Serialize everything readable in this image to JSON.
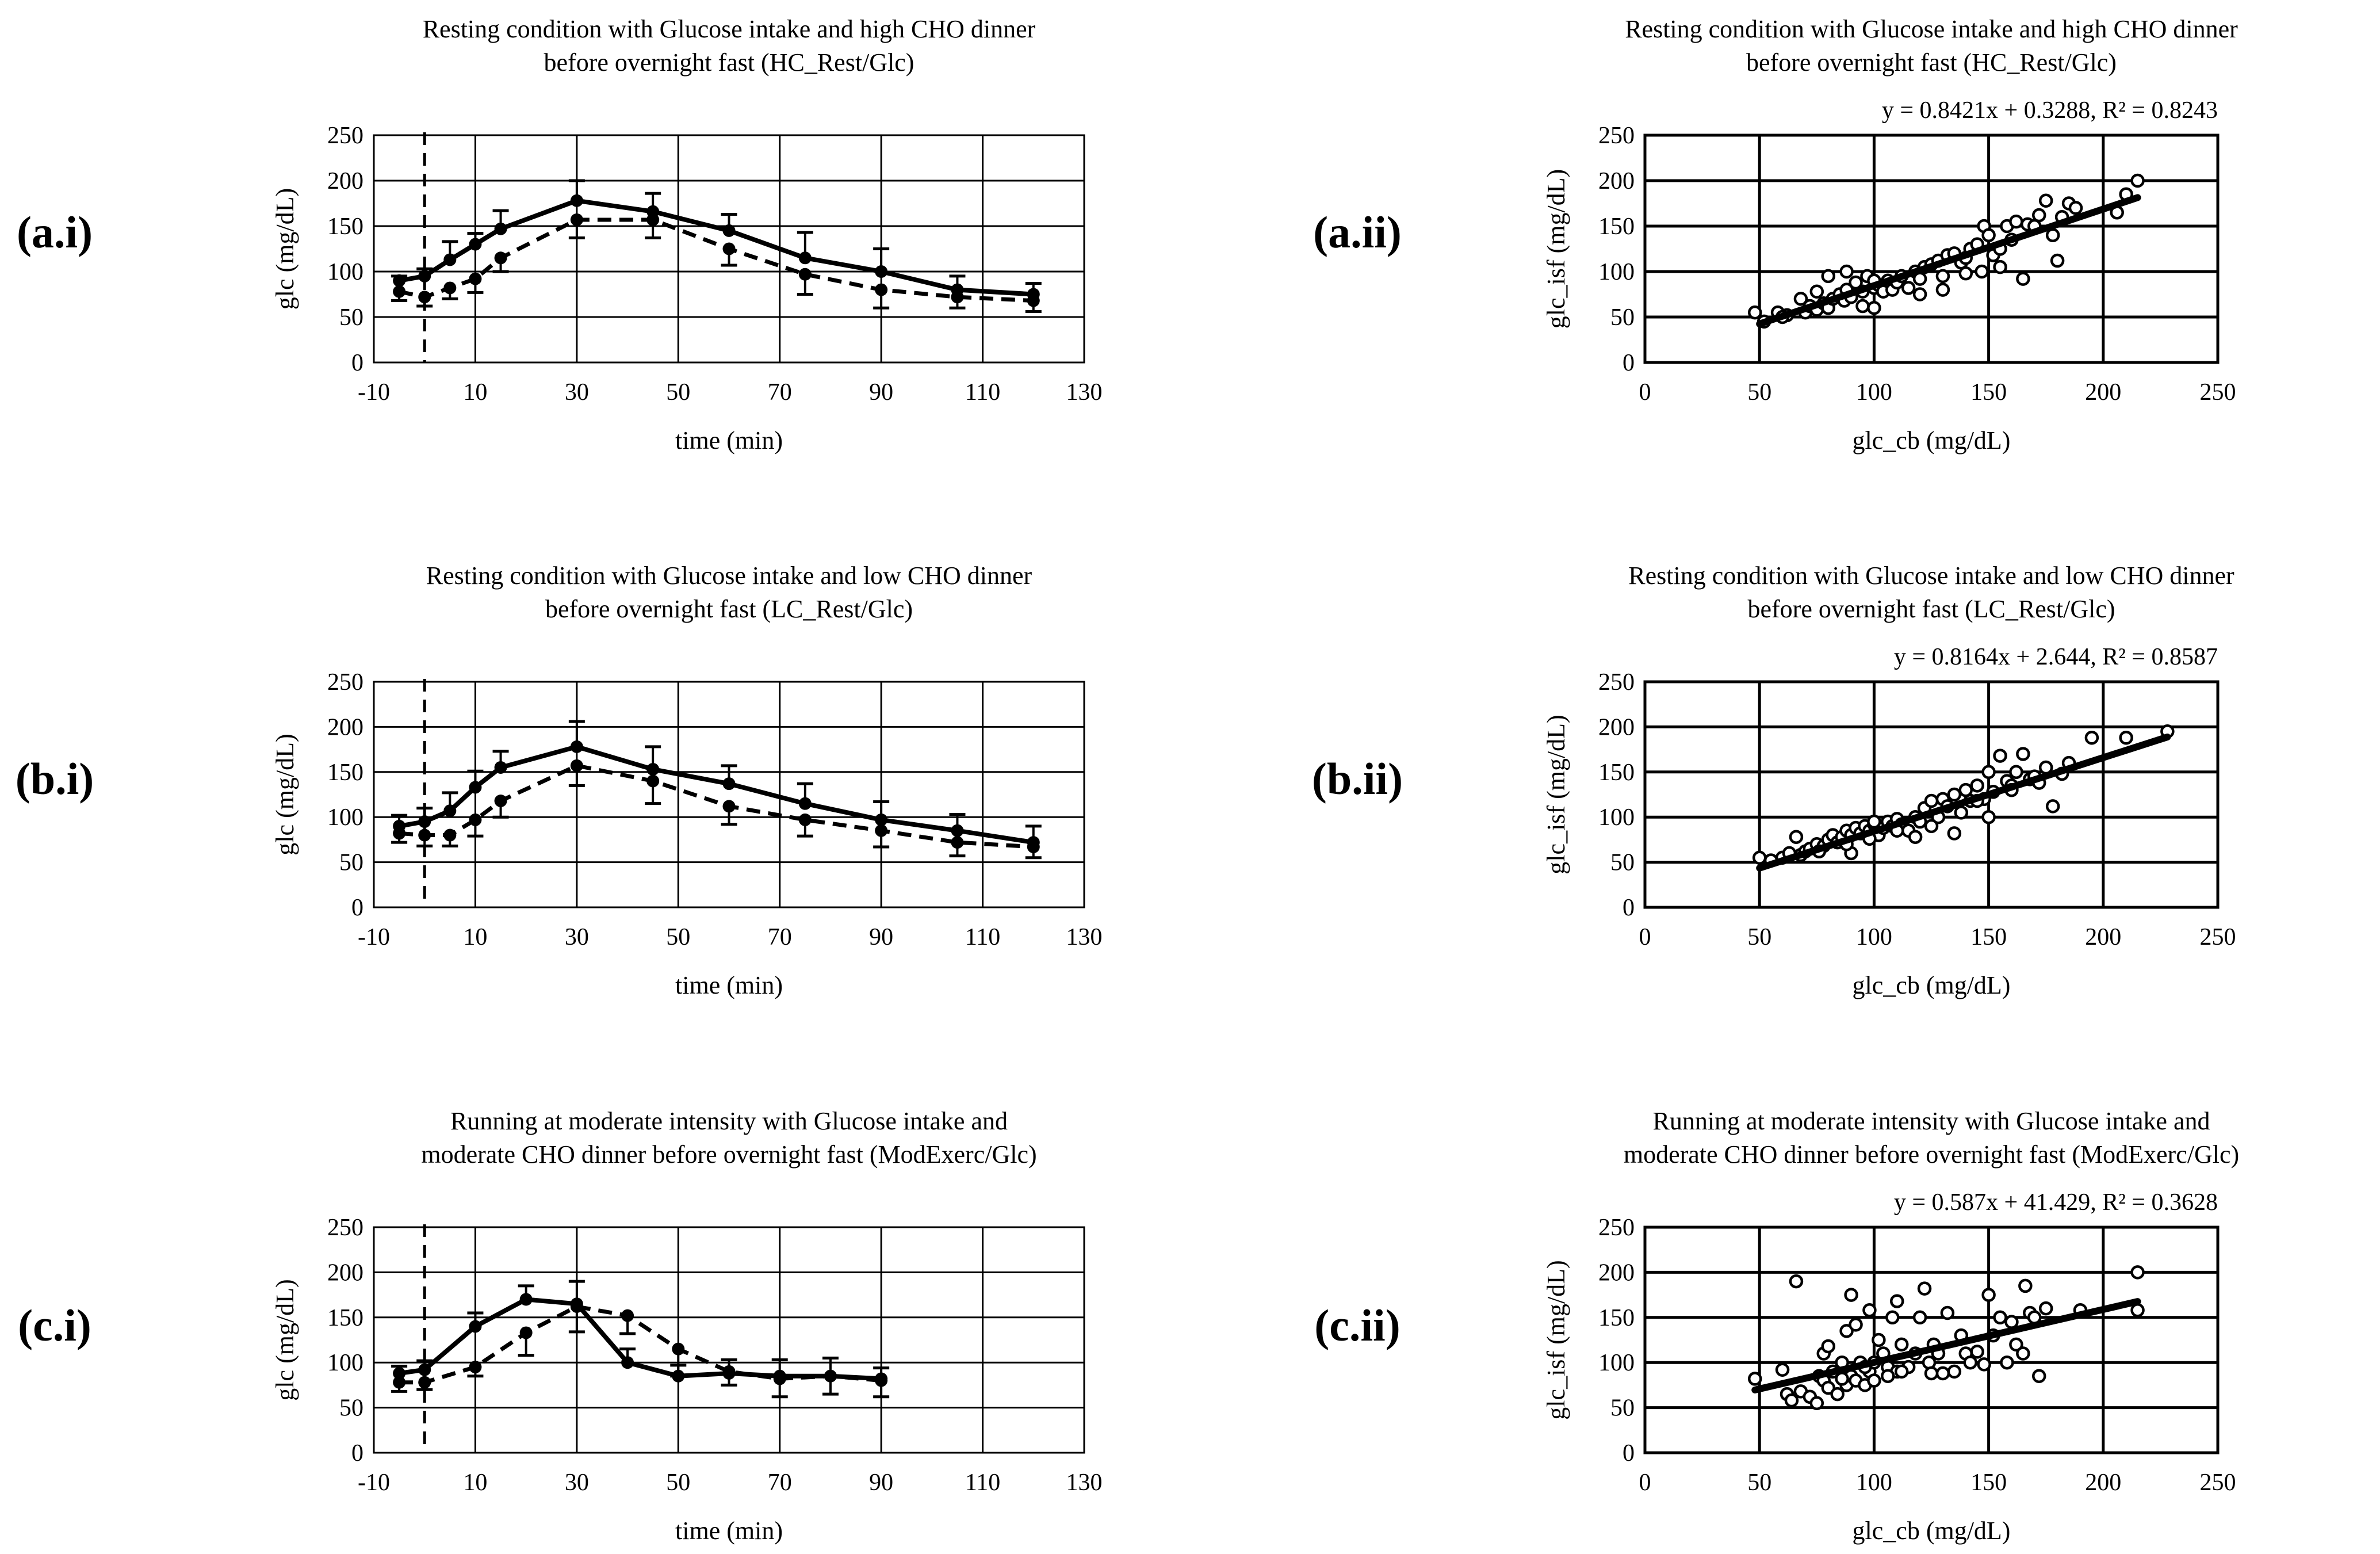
{
  "panel_labels": [
    "(a.i)",
    "(a.ii)",
    "(b.i)",
    "(b.ii)",
    "(c.i)",
    "(c.ii)"
  ],
  "chart_data": [
    {
      "id": "a.i",
      "type": "line",
      "title": [
        "Resting condition with Glucose intake and high CHO dinner",
        "before overnight fast (HC_Rest/Glc)"
      ],
      "xlabel": "time (min)",
      "ylabel": "glc (mg/dL)",
      "xlim": [
        -10,
        130
      ],
      "ylim": [
        0,
        250
      ],
      "xticks": [
        -10,
        10,
        30,
        50,
        70,
        90,
        110,
        130
      ],
      "yticks": [
        0,
        50,
        100,
        150,
        200,
        250
      ],
      "grid": true,
      "vline_x": 0,
      "series": [
        {
          "style": "solid",
          "x": [
            -5,
            0,
            5,
            10,
            15,
            30,
            45,
            60,
            75,
            90,
            105,
            120
          ],
          "y": [
            90,
            95,
            113,
            130,
            147,
            178,
            166,
            145,
            115,
            100,
            80,
            75
          ],
          "err": [
            5,
            8,
            20,
            12,
            20,
            22,
            20,
            18,
            28,
            25,
            15,
            12
          ]
        },
        {
          "style": "dashed",
          "x": [
            -5,
            0,
            5,
            10,
            15,
            30,
            45,
            60,
            75,
            90,
            105,
            120
          ],
          "y": [
            78,
            72,
            82,
            92,
            115,
            157,
            157,
            125,
            97,
            80,
            72,
            68
          ],
          "err": [
            10,
            10,
            12,
            15,
            15,
            20,
            20,
            18,
            22,
            20,
            12,
            12
          ]
        }
      ]
    },
    {
      "id": "a.ii",
      "type": "scatter",
      "title": [
        "Resting condition with Glucose intake and high CHO dinner",
        "before overnight fast (HC_Rest/Glc)"
      ],
      "equation": "y = 0.8421x + 0.3288, R² = 0.8243",
      "xlabel": "glc_cb (mg/dL)",
      "ylabel": "glc_isf (mg/dL)",
      "xlim": [
        0,
        250
      ],
      "ylim": [
        0,
        250
      ],
      "xticks": [
        0,
        50,
        100,
        150,
        200,
        250
      ],
      "yticks": [
        0,
        50,
        100,
        150,
        200,
        250
      ],
      "grid": true,
      "trendline": {
        "slope": 0.8421,
        "intercept": 0.3288,
        "x_range": [
          50,
          215
        ]
      },
      "points": [
        [
          48,
          55
        ],
        [
          52,
          45
        ],
        [
          58,
          55
        ],
        [
          62,
          52
        ],
        [
          68,
          70
        ],
        [
          70,
          55
        ],
        [
          72,
          62
        ],
        [
          75,
          58
        ],
        [
          78,
          65
        ],
        [
          80,
          60
        ],
        [
          82,
          70
        ],
        [
          85,
          75
        ],
        [
          87,
          68
        ],
        [
          88,
          80
        ],
        [
          90,
          72
        ],
        [
          92,
          88
        ],
        [
          95,
          78
        ],
        [
          97,
          95
        ],
        [
          100,
          60
        ],
        [
          100,
          82
        ],
        [
          102,
          85
        ],
        [
          104,
          78
        ],
        [
          106,
          90
        ],
        [
          108,
          80
        ],
        [
          110,
          88
        ],
        [
          112,
          95
        ],
        [
          115,
          82
        ],
        [
          118,
          100
        ],
        [
          120,
          92
        ],
        [
          122,
          105
        ],
        [
          125,
          108
        ],
        [
          128,
          112
        ],
        [
          130,
          95
        ],
        [
          132,
          118
        ],
        [
          135,
          120
        ],
        [
          138,
          110
        ],
        [
          140,
          115
        ],
        [
          142,
          125
        ],
        [
          145,
          130
        ],
        [
          147,
          100
        ],
        [
          148,
          150
        ],
        [
          150,
          140
        ],
        [
          152,
          118
        ],
        [
          155,
          125
        ],
        [
          158,
          150
        ],
        [
          160,
          135
        ],
        [
          162,
          155
        ],
        [
          165,
          92
        ],
        [
          167,
          152
        ],
        [
          170,
          150
        ],
        [
          172,
          162
        ],
        [
          175,
          178
        ],
        [
          178,
          140
        ],
        [
          180,
          112
        ],
        [
          182,
          160
        ],
        [
          185,
          175
        ],
        [
          188,
          170
        ],
        [
          206,
          165
        ],
        [
          210,
          185
        ],
        [
          215,
          200
        ],
        [
          80,
          95
        ],
        [
          95,
          62
        ],
        [
          120,
          75
        ],
        [
          60,
          50
        ],
        [
          75,
          78
        ],
        [
          88,
          100
        ],
        [
          100,
          90
        ],
        [
          130,
          80
        ],
        [
          140,
          98
        ],
        [
          155,
          105
        ]
      ]
    },
    {
      "id": "b.i",
      "type": "line",
      "title": [
        "Resting condition with Glucose intake and low CHO dinner",
        "before overnight fast (LC_Rest/Glc)"
      ],
      "xlabel": "time (min)",
      "ylabel": "glc (mg/dL)",
      "xlim": [
        -10,
        130
      ],
      "ylim": [
        0,
        250
      ],
      "xticks": [
        -10,
        10,
        30,
        50,
        70,
        90,
        110,
        130
      ],
      "yticks": [
        0,
        50,
        100,
        150,
        200,
        250
      ],
      "grid": true,
      "vline_x": 0,
      "series": [
        {
          "style": "solid",
          "x": [
            -5,
            0,
            5,
            10,
            15,
            30,
            45,
            60,
            75,
            90,
            105,
            120
          ],
          "y": [
            90,
            95,
            107,
            133,
            155,
            178,
            153,
            137,
            115,
            97,
            85,
            72
          ],
          "err": [
            12,
            15,
            20,
            18,
            18,
            28,
            25,
            20,
            22,
            20,
            18,
            18
          ]
        },
        {
          "style": "dashed",
          "x": [
            -5,
            0,
            5,
            10,
            15,
            30,
            45,
            60,
            75,
            90,
            105,
            120
          ],
          "y": [
            82,
            80,
            80,
            97,
            118,
            157,
            140,
            112,
            97,
            85,
            72,
            67
          ],
          "err": [
            10,
            12,
            12,
            18,
            18,
            22,
            25,
            20,
            18,
            18,
            15,
            12
          ]
        }
      ]
    },
    {
      "id": "b.ii",
      "type": "scatter",
      "title": [
        "Resting condition with Glucose intake and low CHO dinner",
        "before overnight fast (LC_Rest/Glc)"
      ],
      "equation": "y = 0.8164x + 2.644, R² = 0.8587",
      "xlabel": "glc_cb (mg/dL)",
      "ylabel": "glc_isf (mg/dL)",
      "xlim": [
        0,
        250
      ],
      "ylim": [
        0,
        250
      ],
      "xticks": [
        0,
        50,
        100,
        150,
        200,
        250
      ],
      "yticks": [
        0,
        50,
        100,
        150,
        200,
        250
      ],
      "grid": true,
      "trendline": {
        "slope": 0.8164,
        "intercept": 2.644,
        "x_range": [
          50,
          228
        ]
      },
      "points": [
        [
          50,
          55
        ],
        [
          55,
          52
        ],
        [
          60,
          55
        ],
        [
          63,
          60
        ],
        [
          66,
          78
        ],
        [
          68,
          58
        ],
        [
          70,
          62
        ],
        [
          72,
          65
        ],
        [
          75,
          70
        ],
        [
          78,
          68
        ],
        [
          80,
          75
        ],
        [
          82,
          80
        ],
        [
          84,
          72
        ],
        [
          86,
          78
        ],
        [
          88,
          85
        ],
        [
          90,
          80
        ],
        [
          92,
          88
        ],
        [
          94,
          82
        ],
        [
          96,
          90
        ],
        [
          98,
          85
        ],
        [
          100,
          92
        ],
        [
          102,
          80
        ],
        [
          104,
          88
        ],
        [
          106,
          95
        ],
        [
          108,
          90
        ],
        [
          110,
          98
        ],
        [
          112,
          92
        ],
        [
          115,
          85
        ],
        [
          118,
          100
        ],
        [
          120,
          95
        ],
        [
          122,
          110
        ],
        [
          125,
          118
        ],
        [
          128,
          100
        ],
        [
          130,
          120
        ],
        [
          132,
          112
        ],
        [
          135,
          125
        ],
        [
          138,
          105
        ],
        [
          140,
          130
        ],
        [
          142,
          118
        ],
        [
          145,
          135
        ],
        [
          148,
          120
        ],
        [
          150,
          100
        ],
        [
          150,
          150
        ],
        [
          152,
          128
        ],
        [
          155,
          168
        ],
        [
          158,
          140
        ],
        [
          160,
          135
        ],
        [
          162,
          150
        ],
        [
          165,
          170
        ],
        [
          168,
          142
        ],
        [
          170,
          145
        ],
        [
          172,
          138
        ],
        [
          175,
          155
        ],
        [
          178,
          112
        ],
        [
          182,
          148
        ],
        [
          185,
          160
        ],
        [
          195,
          188
        ],
        [
          210,
          188
        ],
        [
          228,
          195
        ],
        [
          90,
          60
        ],
        [
          100,
          95
        ],
        [
          110,
          85
        ],
        [
          125,
          90
        ],
        [
          135,
          82
        ],
        [
          145,
          118
        ],
        [
          160,
          130
        ],
        [
          88,
          70
        ],
        [
          76,
          62
        ],
        [
          98,
          76
        ],
        [
          118,
          78
        ]
      ]
    },
    {
      "id": "c.i",
      "type": "line",
      "title": [
        "Running at moderate intensity with Glucose intake and",
        "moderate CHO dinner before overnight fast (ModExerc/Glc)"
      ],
      "xlabel": "time (min)",
      "ylabel": "glc (mg/dL)",
      "xlim": [
        -10,
        130
      ],
      "ylim": [
        0,
        250
      ],
      "xticks": [
        -10,
        10,
        30,
        50,
        70,
        90,
        110,
        130
      ],
      "yticks": [
        0,
        50,
        100,
        150,
        200,
        250
      ],
      "grid": true,
      "vline_x": 0,
      "series": [
        {
          "style": "solid",
          "x": [
            -5,
            0,
            10,
            20,
            30,
            40,
            50,
            60,
            70,
            80,
            90
          ],
          "y": [
            88,
            92,
            140,
            170,
            165,
            100,
            85,
            88,
            85,
            85,
            82
          ],
          "err": [
            8,
            10,
            15,
            15,
            25,
            15,
            12,
            15,
            18,
            20,
            12
          ]
        },
        {
          "style": "dashed",
          "x": [
            -5,
            0,
            10,
            20,
            30,
            40,
            50,
            60,
            70,
            80,
            90
          ],
          "y": [
            78,
            78,
            95,
            133,
            162,
            152,
            115,
            90,
            82,
            85,
            80
          ],
          "err": [
            10,
            8,
            10,
            25,
            28,
            20,
            30,
            15,
            20,
            20,
            18
          ]
        }
      ]
    },
    {
      "id": "c.ii",
      "type": "scatter",
      "title": [
        "Running at moderate intensity with Glucose intake and",
        "moderate CHO dinner before overnight fast (ModExerc/Glc)"
      ],
      "equation": "y = 0.587x + 41.429, R² = 0.3628",
      "xlabel": "glc_cb (mg/dL)",
      "ylabel": "glc_isf (mg/dL)",
      "xlim": [
        0,
        250
      ],
      "ylim": [
        0,
        250
      ],
      "xticks": [
        0,
        50,
        100,
        150,
        200,
        250
      ],
      "yticks": [
        0,
        50,
        100,
        150,
        200,
        250
      ],
      "grid": true,
      "trendline": {
        "slope": 0.587,
        "intercept": 41.429,
        "x_range": [
          48,
          215
        ]
      },
      "points": [
        [
          48,
          82
        ],
        [
          60,
          92
        ],
        [
          62,
          65
        ],
        [
          64,
          58
        ],
        [
          66,
          190
        ],
        [
          68,
          68
        ],
        [
          72,
          62
        ],
        [
          75,
          55
        ],
        [
          76,
          85
        ],
        [
          78,
          80
        ],
        [
          78,
          110
        ],
        [
          80,
          72
        ],
        [
          80,
          118
        ],
        [
          82,
          90
        ],
        [
          84,
          65
        ],
        [
          86,
          100
        ],
        [
          88,
          75
        ],
        [
          88,
          135
        ],
        [
          90,
          175
        ],
        [
          90,
          85
        ],
        [
          92,
          80
        ],
        [
          92,
          142
        ],
        [
          94,
          100
        ],
        [
          96,
          75
        ],
        [
          98,
          158
        ],
        [
          98,
          90
        ],
        [
          100,
          80
        ],
        [
          100,
          100
        ],
        [
          102,
          125
        ],
        [
          104,
          110
        ],
        [
          106,
          95
        ],
        [
          108,
          150
        ],
        [
          110,
          168
        ],
        [
          110,
          90
        ],
        [
          112,
          120
        ],
        [
          115,
          95
        ],
        [
          118,
          110
        ],
        [
          120,
          150
        ],
        [
          122,
          182
        ],
        [
          124,
          100
        ],
        [
          126,
          120
        ],
        [
          128,
          110
        ],
        [
          130,
          88
        ],
        [
          132,
          155
        ],
        [
          135,
          90
        ],
        [
          138,
          130
        ],
        [
          140,
          110
        ],
        [
          142,
          100
        ],
        [
          145,
          112
        ],
        [
          148,
          98
        ],
        [
          150,
          175
        ],
        [
          152,
          130
        ],
        [
          155,
          150
        ],
        [
          158,
          100
        ],
        [
          160,
          145
        ],
        [
          162,
          120
        ],
        [
          165,
          110
        ],
        [
          166,
          185
        ],
        [
          168,
          155
        ],
        [
          170,
          150
        ],
        [
          172,
          85
        ],
        [
          175,
          160
        ],
        [
          190,
          158
        ],
        [
          215,
          200
        ],
        [
          215,
          158
        ],
        [
          106,
          85
        ],
        [
          86,
          82
        ],
        [
          96,
          95
        ],
        [
          112,
          90
        ],
        [
          125,
          88
        ]
      ]
    }
  ]
}
